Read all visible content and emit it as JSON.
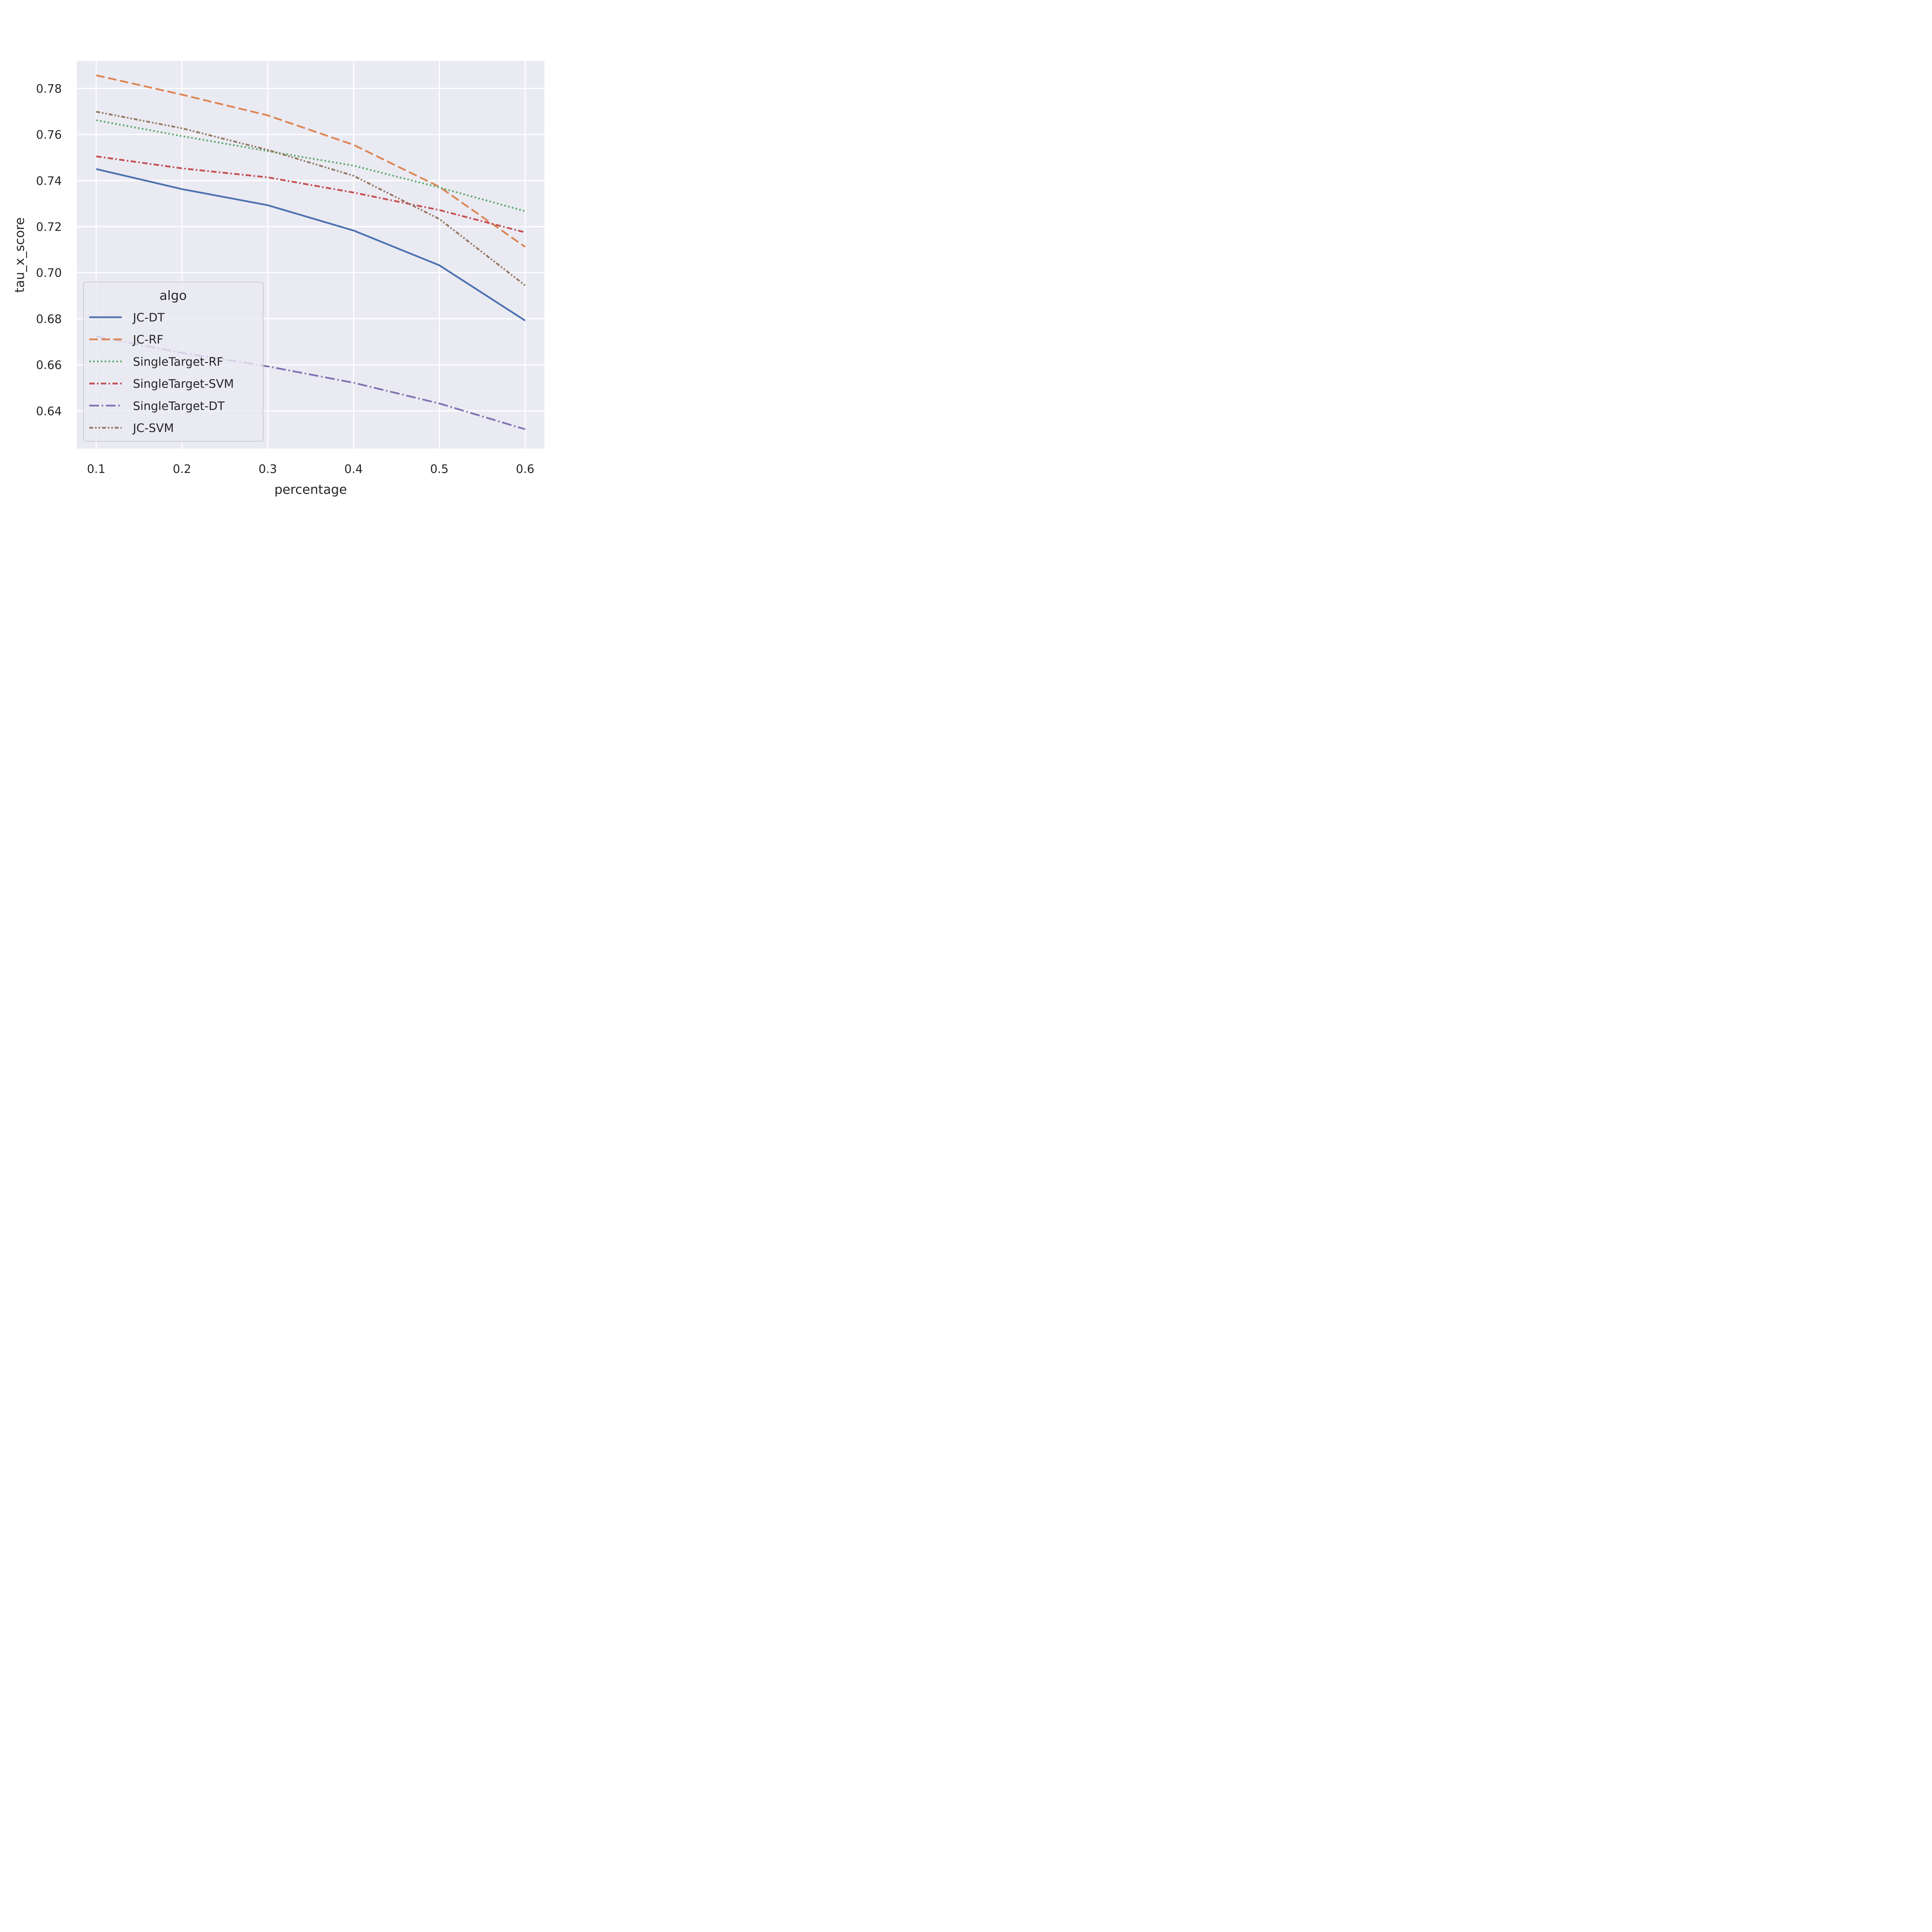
{
  "chart_data": {
    "type": "line",
    "title": "",
    "xlabel": "percentage",
    "ylabel": "tau_x_score",
    "x": [
      0.1,
      0.2,
      0.3,
      0.4,
      0.5,
      0.6
    ],
    "xticks": [
      "0.1",
      "0.2",
      "0.3",
      "0.4",
      "0.5",
      "0.6"
    ],
    "yticks": [
      "0.64",
      "0.66",
      "0.68",
      "0.70",
      "0.72",
      "0.74",
      "0.76",
      "0.78"
    ],
    "xlim": [
      0.0775,
      0.6225
    ],
    "ylim": [
      0.6236,
      0.7919
    ],
    "grid": true,
    "legend": {
      "title": "algo",
      "position": "lower-left"
    },
    "series": [
      {
        "name": "JC-DT",
        "color": "#4c72b0",
        "dash": "solid",
        "values": [
          0.745,
          0.7363,
          0.7293,
          0.7183,
          0.7032,
          0.6792
        ]
      },
      {
        "name": "JC-RF",
        "color": "#dd8452",
        "dash": "dashed",
        "values": [
          0.7857,
          0.7773,
          0.7683,
          0.7555,
          0.7373,
          0.7112
        ]
      },
      {
        "name": "SingleTarget-RF",
        "color": "#55a868",
        "dash": "dotted",
        "values": [
          0.7662,
          0.7593,
          0.7528,
          0.7465,
          0.737,
          0.7267
        ]
      },
      {
        "name": "SingleTarget-SVM",
        "color": "#c44e52",
        "dash": "dashdot2",
        "values": [
          0.7505,
          0.7453,
          0.7414,
          0.7348,
          0.7272,
          0.7175
        ]
      },
      {
        "name": "SingleTarget-DT",
        "color": "#8172b3",
        "dash": "dashdot",
        "values": [
          0.6723,
          0.6652,
          0.6593,
          0.6522,
          0.6432,
          0.632
        ]
      },
      {
        "name": "JC-SVM",
        "color": "#937860",
        "dash": "dashdotdot",
        "values": [
          0.7699,
          0.7627,
          0.7533,
          0.7421,
          0.7233,
          0.6945
        ]
      }
    ]
  }
}
